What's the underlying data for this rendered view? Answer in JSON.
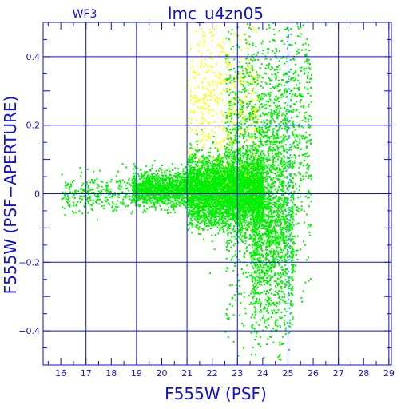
{
  "chart_data": {
    "type": "scatter",
    "title": "lmc_u4zn05",
    "subtitle": "WF3",
    "xlabel": "F555W (PSF)",
    "ylabel": "F555W (PSF−APERTURE)",
    "xlim": [
      15.3,
      29.1
    ],
    "ylim": [
      -0.5,
      0.5
    ],
    "x_ticks": [
      16,
      17,
      18,
      19,
      20,
      21,
      22,
      23,
      24,
      25,
      26,
      27,
      28,
      29
    ],
    "y_ticks": [
      -0.4,
      -0.2,
      0,
      0.2,
      0.4
    ],
    "y_tick_labels": [
      "−0.4",
      "−0.2",
      "0",
      "0.2",
      "0.4"
    ],
    "grid": true,
    "colors": {
      "axes": "#1010d0",
      "series_main": "#00ee00",
      "series_flagged": "#ffff00"
    },
    "series": [
      {
        "color": "#00ee00",
        "description_density": [
          {
            "x_range": [
              16.0,
              18.8
            ],
            "y_center": 0.0,
            "y_spread": 0.03,
            "weight": 0.03
          },
          {
            "x_range": [
              18.8,
              21.0
            ],
            "y_center": 0.015,
            "y_spread": 0.025,
            "weight": 0.14
          },
          {
            "x_range": [
              21.0,
              24.0
            ],
            "y_center": 0.01,
            "y_spread": 0.05,
            "weight": 0.45
          },
          {
            "x_range": [
              22.5,
              24.9
            ],
            "y_center": 0.1,
            "y_spread": 0.2,
            "weight": 0.18
          },
          {
            "x_range": [
              23.5,
              25.2
            ],
            "y_center": -0.12,
            "y_spread": 0.15,
            "weight": 0.15
          },
          {
            "x_range": [
              24.9,
              25.9
            ],
            "y_center": 0.18,
            "y_spread": 0.2,
            "weight": 0.05
          }
        ]
      },
      {
        "color": "#ffff00",
        "description_density": [
          {
            "x_range": [
              21.0,
              23.8
            ],
            "y_center": 0.27,
            "y_spread": 0.12,
            "weight": 1.0
          }
        ]
      }
    ]
  }
}
